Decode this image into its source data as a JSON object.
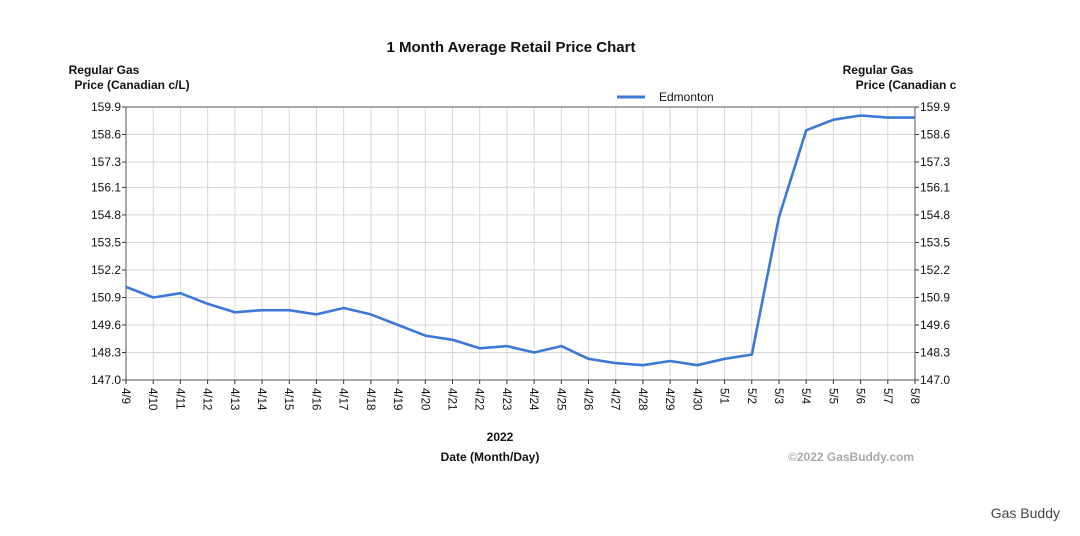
{
  "chart_data": {
    "type": "line",
    "title": "1 Month Average Retail Price Chart",
    "ylabel_left_line1": "Regular Gas",
    "ylabel_left_line2": "Price (Canadian c/L)",
    "ylabel_right_line1": "Regular Gas",
    "ylabel_right_line2": "Price (Canadian c",
    "xlabel_year": "2022",
    "xlabel": "Date (Month/Day)",
    "watermark": "©2022 GasBuddy.com",
    "legend_position": "top-center",
    "grid": true,
    "ylim": [
      147.0,
      159.9
    ],
    "yticks": [
      "159.9",
      "158.6",
      "157.3",
      "156.1",
      "154.8",
      "153.5",
      "152.2",
      "150.9",
      "149.6",
      "148.3",
      "147.0"
    ],
    "categories": [
      "4/9",
      "4/10",
      "4/11",
      "4/12",
      "4/13",
      "4/14",
      "4/15",
      "4/16",
      "4/17",
      "4/18",
      "4/19",
      "4/20",
      "4/21",
      "4/22",
      "4/23",
      "4/24",
      "4/25",
      "4/26",
      "4/27",
      "4/28",
      "4/29",
      "4/30",
      "5/1",
      "5/2",
      "5/3",
      "5/4",
      "5/5",
      "5/6",
      "5/7",
      "5/8"
    ],
    "series": [
      {
        "name": "Edmonton",
        "color": "#3b78d8",
        "values": [
          151.4,
          150.9,
          151.1,
          150.6,
          150.2,
          150.3,
          150.3,
          150.1,
          150.4,
          150.1,
          149.6,
          149.1,
          148.9,
          148.5,
          148.6,
          148.3,
          148.6,
          148.0,
          147.8,
          147.7,
          147.9,
          147.7,
          148.0,
          148.2,
          154.7,
          158.8,
          159.3,
          159.5,
          159.4,
          159.4
        ]
      }
    ]
  },
  "footer": {
    "credit": "Gas Buddy"
  }
}
